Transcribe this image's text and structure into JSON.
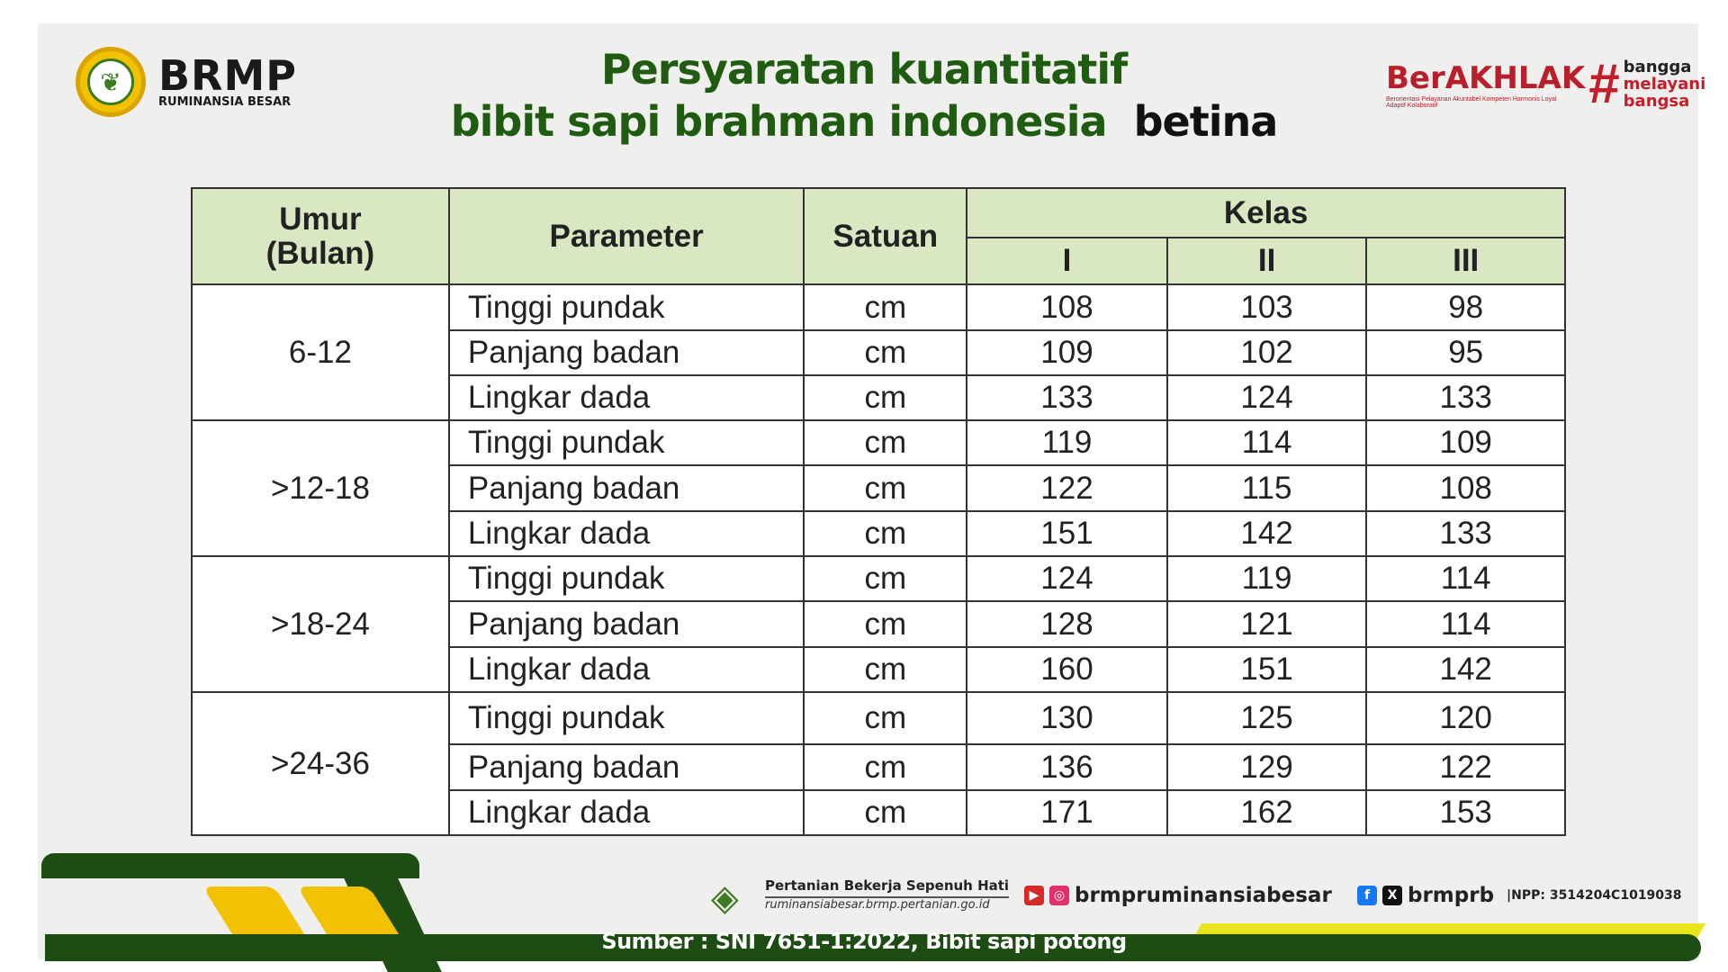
{
  "header": {
    "brand": "BRMP",
    "brand_sub": "RUMINANSIA BESAR",
    "title_line1": "Persyaratan kuantitatif",
    "title_line2": "bibit sapi brahman indonesia",
    "title_emphasis": "betina",
    "akhlak": {
      "main": "BerAKHLAK",
      "tagline": "Berorientasi Pelayanan Akuntabel Kompeten Harmonis Loyal Adaptif Kolaboratif",
      "hash": "#",
      "right": [
        "bangga",
        "melayani",
        "bangsa"
      ]
    }
  },
  "table": {
    "headers": {
      "umur": "Umur (Bulan)",
      "parameter": "Parameter",
      "satuan": "Satuan",
      "kelas": "Kelas",
      "classes": [
        "I",
        "II",
        "III"
      ]
    },
    "groups": [
      {
        "age": "6-12",
        "rows": [
          {
            "param": "Tinggi pundak",
            "unit": "cm",
            "values": [
              "108",
              "103",
              "98"
            ]
          },
          {
            "param": "Panjang badan",
            "unit": "cm",
            "values": [
              "109",
              "102",
              "95"
            ]
          },
          {
            "param": "Lingkar dada",
            "unit": "cm",
            "values": [
              "133",
              "124",
              "133"
            ]
          }
        ]
      },
      {
        "age": ">12-18",
        "rows": [
          {
            "param": "Tinggi pundak",
            "unit": "cm",
            "values": [
              "119",
              "114",
              "109"
            ]
          },
          {
            "param": "Panjang badan",
            "unit": "cm",
            "values": [
              "122",
              "115",
              "108"
            ]
          },
          {
            "param": "Lingkar dada",
            "unit": "cm",
            "values": [
              "151",
              "142",
              "133"
            ]
          }
        ]
      },
      {
        "age": ">18-24",
        "rows": [
          {
            "param": "Tinggi pundak",
            "unit": "cm",
            "values": [
              "124",
              "119",
              "114"
            ]
          },
          {
            "param": "Panjang badan",
            "unit": "cm",
            "values": [
              "128",
              "121",
              "114"
            ]
          },
          {
            "param": "Lingkar dada",
            "unit": "cm",
            "values": [
              "160",
              "151",
              "142"
            ]
          }
        ]
      },
      {
        "age": ">24-36",
        "rows": [
          {
            "param": "Tinggi pundak",
            "unit": "cm",
            "values": [
              "130",
              "125",
              "120"
            ]
          },
          {
            "param": "Panjang badan",
            "unit": "cm",
            "values": [
              "136",
              "129",
              "122"
            ]
          },
          {
            "param": "Lingkar dada",
            "unit": "cm",
            "values": [
              "171",
              "162",
              "153"
            ]
          }
        ]
      }
    ]
  },
  "footer": {
    "tagline": "Pertanian Bekerja Sepenuh Hati",
    "website": "ruminansiabesar.brmp.pertanian.go.id",
    "instagram": "brmpruminansiabesar",
    "twitter": "brmprb",
    "npp": "|NPP: 3514204C1019038",
    "source": "Sumber : SNI 7651-1:2022, Bibit sapi potong"
  },
  "colors": {
    "header_green": "#d9e8c2",
    "title_green": "#1f5c12",
    "band_green": "#1e4d14",
    "yellow": "#f2c200",
    "red": "#b81f2a"
  }
}
